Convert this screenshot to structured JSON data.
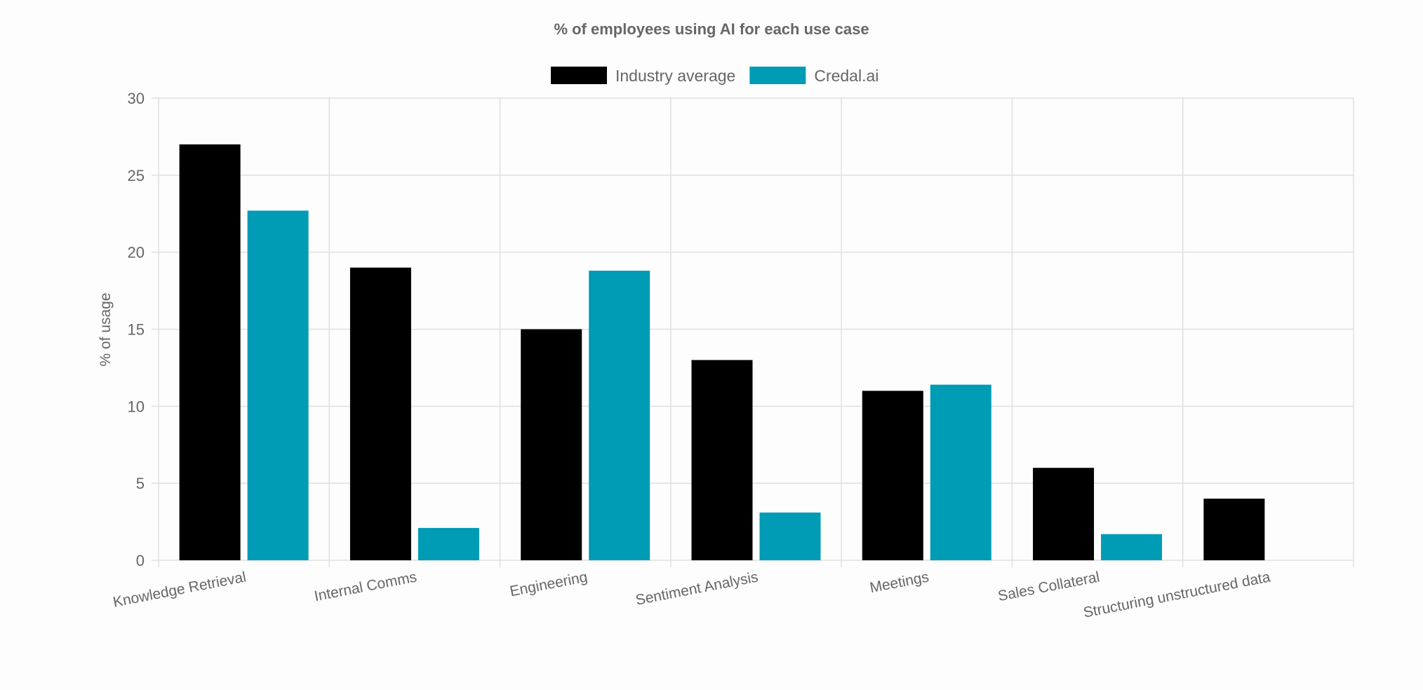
{
  "chart_data": {
    "type": "bar",
    "title": "% of employees using AI for each use case",
    "xlabel": "",
    "ylabel": "% of usage",
    "ylim": [
      0,
      30
    ],
    "yticks": [
      0,
      5,
      10,
      15,
      20,
      25,
      30
    ],
    "grid": true,
    "legend_position": "top",
    "categories": [
      "Knowledge Retrieval",
      "Internal Comms",
      "Engineering",
      "Sentiment Analysis",
      "Meetings",
      "Sales Collateral",
      "Structuring unstructured data"
    ],
    "series": [
      {
        "name": "Industry average",
        "color": "#000000",
        "values": [
          27,
          19,
          15,
          13,
          11,
          6,
          4
        ]
      },
      {
        "name": "Credal.ai",
        "color": "#009bb4",
        "values": [
          22.7,
          2.1,
          18.8,
          3.1,
          11.4,
          1.7,
          0
        ]
      }
    ]
  }
}
